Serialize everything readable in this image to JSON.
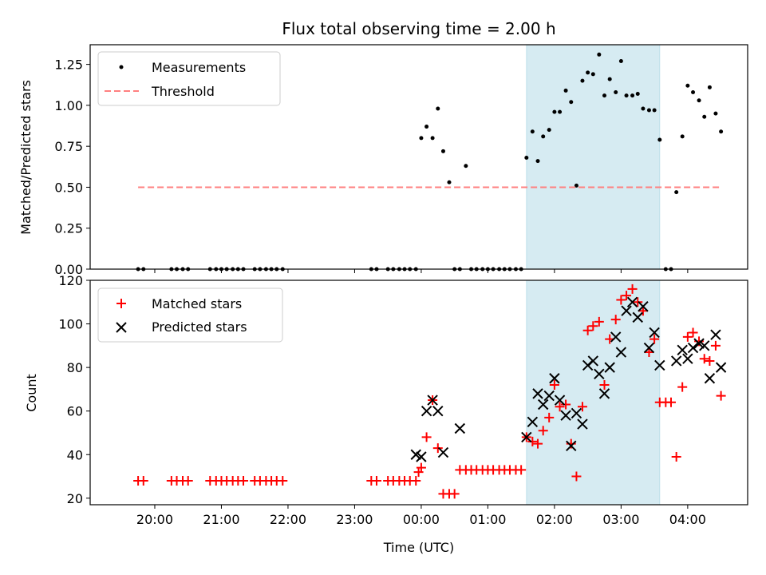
{
  "chart_data": [
    {
      "type": "scatter",
      "title": "Flux total observing time = 2.00 h",
      "xlabel": "",
      "ylabel": "Matched/Predicted stars",
      "ylim": [
        0,
        1.37
      ],
      "yticks": [
        "0.00",
        "0.25",
        "0.50",
        "0.75",
        "1.00",
        "1.25"
      ],
      "xticks_hours": [
        20,
        21,
        22,
        23,
        24,
        25,
        26,
        27,
        28
      ],
      "legend_position": "top-left",
      "highlight_span_hours": [
        25.58,
        27.58
      ],
      "series": [
        {
          "name": "Measurements",
          "marker": "dot",
          "color": "#000000",
          "x_hours": [
            19.75,
            19.83,
            20.25,
            20.33,
            20.42,
            20.5,
            20.83,
            20.92,
            21.0,
            21.08,
            21.17,
            21.25,
            21.33,
            21.5,
            21.58,
            21.67,
            21.75,
            21.83,
            21.92,
            23.25,
            23.33,
            23.5,
            23.58,
            23.67,
            23.75,
            23.83,
            23.92,
            24.0,
            24.08,
            24.17,
            24.25,
            24.33,
            24.42,
            24.5,
            24.58,
            24.67,
            24.75,
            24.83,
            24.92,
            25.0,
            25.08,
            25.17,
            25.25,
            25.33,
            25.42,
            25.5,
            25.58,
            25.67,
            25.75,
            25.83,
            25.92,
            26.0,
            26.08,
            26.17,
            26.25,
            26.33,
            26.42,
            26.5,
            26.58,
            26.67,
            26.75,
            26.83,
            26.92,
            27.0,
            27.08,
            27.17,
            27.25,
            27.33,
            27.42,
            27.5,
            27.58,
            27.67,
            27.75,
            27.83,
            27.92,
            28.0,
            28.08,
            28.17,
            28.25,
            28.33,
            28.42,
            28.5
          ],
          "y": [
            0.0,
            0.0,
            0.0,
            0.0,
            0.0,
            0.0,
            0.0,
            0.0,
            0.0,
            0.0,
            0.0,
            0.0,
            0.0,
            0.0,
            0.0,
            0.0,
            0.0,
            0.0,
            0.0,
            0.0,
            0.0,
            0.0,
            0.0,
            0.0,
            0.0,
            0.0,
            0.0,
            0.8,
            0.87,
            0.8,
            0.98,
            0.72,
            0.53,
            0.0,
            0.0,
            0.63,
            0.0,
            0.0,
            0.0,
            0.0,
            0.0,
            0.0,
            0.0,
            0.0,
            0.0,
            0.0,
            0.68,
            0.84,
            0.66,
            0.81,
            0.85,
            0.96,
            0.96,
            1.09,
            1.02,
            0.51,
            1.15,
            1.2,
            1.19,
            1.31,
            1.06,
            1.16,
            1.08,
            1.27,
            1.06,
            1.06,
            1.07,
            0.98,
            0.97,
            0.97,
            0.79,
            0.0,
            0.0,
            0.47,
            0.81,
            1.12,
            1.08,
            1.03,
            0.93,
            1.11,
            0.95,
            0.84
          ]
        },
        {
          "name": "Threshold",
          "type": "line",
          "style": "dashed",
          "color": "#ff8080",
          "x_hours": [
            19.75,
            28.5
          ],
          "y": [
            0.5,
            0.5
          ]
        }
      ]
    },
    {
      "type": "scatter",
      "title": "",
      "xlabel": "Time (UTC)",
      "ylabel": "Count",
      "ylim": [
        17,
        120
      ],
      "yticks": [
        "20",
        "40",
        "60",
        "80",
        "100",
        "120"
      ],
      "xticks_hours": [
        20,
        21,
        22,
        23,
        24,
        25,
        26,
        27,
        28
      ],
      "xticks": [
        "20:00",
        "21:00",
        "22:00",
        "23:00",
        "00:00",
        "01:00",
        "02:00",
        "03:00",
        "04:00"
      ],
      "legend_position": "top-left",
      "highlight_span_hours": [
        25.58,
        27.58
      ],
      "series": [
        {
          "name": "Matched stars",
          "marker": "plus",
          "color": "#ff0000",
          "x_hours": [
            19.75,
            19.83,
            20.25,
            20.33,
            20.42,
            20.5,
            20.83,
            20.92,
            21.0,
            21.08,
            21.17,
            21.25,
            21.33,
            21.5,
            21.58,
            21.67,
            21.75,
            21.83,
            21.92,
            23.25,
            23.33,
            23.5,
            23.58,
            23.67,
            23.75,
            23.83,
            23.92,
            23.96,
            24.0,
            24.08,
            24.17,
            24.25,
            24.33,
            24.42,
            24.5,
            24.58,
            24.67,
            24.75,
            24.83,
            24.92,
            25.0,
            25.08,
            25.17,
            25.25,
            25.33,
            25.42,
            25.5,
            25.58,
            25.67,
            25.75,
            25.83,
            25.92,
            26.0,
            26.08,
            26.17,
            26.25,
            26.33,
            26.42,
            26.5,
            26.58,
            26.67,
            26.75,
            26.83,
            26.92,
            27.0,
            27.08,
            27.17,
            27.25,
            27.33,
            27.42,
            27.5,
            27.58,
            27.67,
            27.75,
            27.83,
            27.92,
            28.0,
            28.08,
            28.17,
            28.25,
            28.33,
            28.42,
            28.5
          ],
          "y": [
            28,
            28,
            28,
            28,
            28,
            28,
            28,
            28,
            28,
            28,
            28,
            28,
            28,
            28,
            28,
            28,
            28,
            28,
            28,
            28,
            28,
            28,
            28,
            28,
            28,
            28,
            28,
            32,
            34,
            48,
            65,
            43,
            22,
            22,
            22,
            33,
            33,
            33,
            33,
            33,
            33,
            33,
            33,
            33,
            33,
            33,
            33,
            48,
            46,
            45,
            51,
            57,
            72,
            62,
            63,
            45,
            30,
            62,
            97,
            99,
            101,
            72,
            93,
            102,
            111,
            113,
            116,
            110,
            106,
            87,
            93,
            64,
            64,
            64,
            39,
            71,
            94,
            96,
            92,
            84,
            83,
            90,
            67
          ]
        },
        {
          "name": "Predicted stars",
          "marker": "x",
          "color": "#000000",
          "x_hours": [
            23.92,
            24.0,
            24.08,
            24.17,
            24.25,
            24.33,
            24.58,
            25.58,
            25.67,
            25.75,
            25.83,
            25.92,
            26.0,
            26.08,
            26.17,
            26.25,
            26.33,
            26.42,
            26.5,
            26.58,
            26.67,
            26.75,
            26.83,
            26.92,
            27.0,
            27.08,
            27.17,
            27.25,
            27.33,
            27.42,
            27.5,
            27.58,
            27.83,
            27.92,
            28.0,
            28.08,
            28.17,
            28.25,
            28.33,
            28.42,
            28.5
          ],
          "y": [
            40,
            39,
            60,
            65,
            60,
            41,
            52,
            48,
            55,
            68,
            63,
            67,
            75,
            65,
            58,
            44,
            59,
            54,
            81,
            83,
            77,
            68,
            80,
            94,
            87,
            106,
            110,
            103,
            108,
            89,
            96,
            81,
            83,
            88,
            84,
            89,
            91,
            90,
            75,
            95,
            80
          ]
        }
      ]
    }
  ]
}
